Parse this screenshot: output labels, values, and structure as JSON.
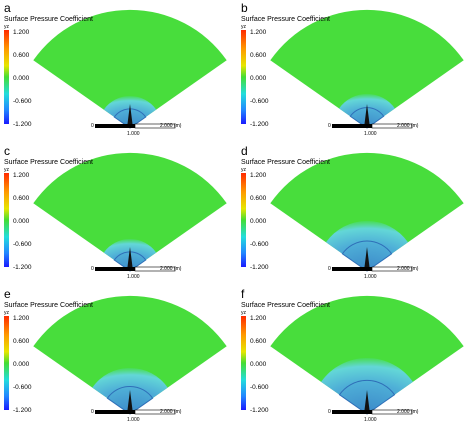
{
  "panels": [
    {
      "letter": "a",
      "title": "Surface Pressure Coefficient",
      "axis": "yz",
      "ticks": [
        "1.200",
        "0.600",
        "0.000",
        "-0.600",
        "-1.200"
      ],
      "scale": [
        "0",
        "1.000",
        "2.000 (m)"
      ]
    },
    {
      "letter": "b",
      "title": "Surface Pressure Coefficient",
      "axis": "yz",
      "ticks": [
        "1.200",
        "0.600",
        "0.000",
        "-0.600",
        "-1.200"
      ],
      "scale": [
        "0",
        "1.000",
        "2.000 (m)"
      ]
    },
    {
      "letter": "c",
      "title": "Surface Pressure Coefficient",
      "axis": "yz",
      "ticks": [
        "1.200",
        "0.600",
        "0.000",
        "-0.600",
        "-1.200"
      ],
      "scale": [
        "0",
        "1.000",
        "2.000 (m)"
      ]
    },
    {
      "letter": "d",
      "title": "Surface Pressure Coefficient",
      "axis": "yz",
      "ticks": [
        "1.200",
        "0.600",
        "0.000",
        "-0.600",
        "-1.200"
      ],
      "scale": [
        "0",
        "1.000",
        "2.000 (m)"
      ]
    },
    {
      "letter": "e",
      "title": "Surface Pressure Coefficient",
      "axis": "yz",
      "ticks": [
        "1.200",
        "0.600",
        "0.000",
        "-0.600",
        "-1.200"
      ],
      "scale": [
        "0",
        "1.000",
        "2.000 (m)"
      ]
    },
    {
      "letter": "f",
      "title": "Surface Pressure Coefficient",
      "axis": "yz",
      "ticks": [
        "1.200",
        "0.600",
        "0.000",
        "-0.600",
        "-1.200"
      ],
      "scale": [
        "0",
        "1.000",
        "2.000 (m)"
      ]
    }
  ]
}
